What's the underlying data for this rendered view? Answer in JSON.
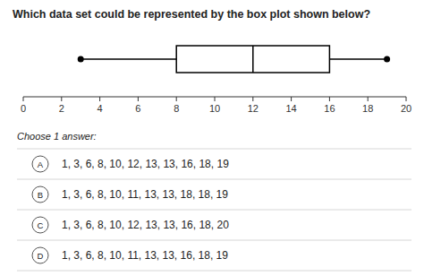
{
  "chart_data": {
    "type": "box",
    "title": "Which data set could be represented by the box plot shown below?",
    "box": {
      "min": 3,
      "q1": 8,
      "median": 12,
      "q3": 16,
      "max": 19
    },
    "xlim": [
      0,
      20
    ],
    "xticks": [
      0,
      2,
      4,
      6,
      8,
      10,
      12,
      14,
      16,
      18,
      20
    ],
    "prompt": "Choose 1 answer:",
    "options": [
      {
        "label": "A",
        "text": "1, 3, 6, 8, 10, 12, 13, 13, 16, 18, 19"
      },
      {
        "label": "B",
        "text": "1, 3, 6, 8, 10, 11, 13, 13, 18, 18, 19"
      },
      {
        "label": "C",
        "text": "1, 3, 6, 8, 10, 12, 13, 13, 16, 18, 20"
      },
      {
        "label": "D",
        "text": "1, 3, 6, 8, 10, 11, 13, 13, 16, 18, 19"
      }
    ]
  }
}
